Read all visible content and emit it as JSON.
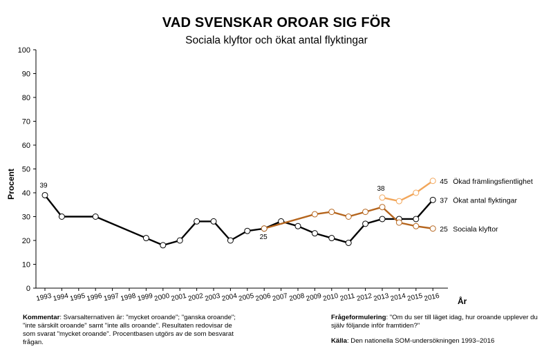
{
  "title": "VAD SVENSKAR OROAR SIG FÖR",
  "subtitle": "Sociala klyftor och ökat antal flyktingar",
  "chart_data": {
    "type": "line",
    "title": "VAD SVENSKAR OROAR SIG FÖR",
    "subtitle": "Sociala klyftor och ökat antal flyktingar",
    "xlabel": "År",
    "ylabel": "Procent",
    "ylim": [
      0,
      100
    ],
    "yticks": [
      "0",
      "10",
      "20",
      "30",
      "40",
      "50",
      "60",
      "70",
      "80",
      "90",
      "100"
    ],
    "xticks": [
      "1993",
      "1994",
      "1995",
      "1996",
      "1997",
      "1998",
      "1999",
      "2000",
      "2001",
      "2002",
      "2003",
      "2004",
      "2005",
      "2006",
      "2007",
      "2008",
      "2009",
      "2010",
      "2011",
      "2012",
      "2013",
      "2014",
      "2015",
      "2016"
    ],
    "grid": false,
    "legend": "right-end labels",
    "series": [
      {
        "name": "Ökat antal flyktingar",
        "color": "#000000",
        "end_label": "37",
        "points": [
          {
            "x": 1993,
            "y": 39
          },
          {
            "x": 1994,
            "y": 30
          },
          {
            "x": 1996,
            "y": 30
          },
          {
            "x": 1999,
            "y": 21
          },
          {
            "x": 2000,
            "y": 18
          },
          {
            "x": 2001,
            "y": 20
          },
          {
            "x": 2002,
            "y": 28
          },
          {
            "x": 2003,
            "y": 28
          },
          {
            "x": 2004,
            "y": 20
          },
          {
            "x": 2005,
            "y": 24
          },
          {
            "x": 2006,
            "y": 25
          },
          {
            "x": 2007,
            "y": 28
          },
          {
            "x": 2008,
            "y": 26
          },
          {
            "x": 2009,
            "y": 23
          },
          {
            "x": 2010,
            "y": 21
          },
          {
            "x": 2011,
            "y": 19
          },
          {
            "x": 2012,
            "y": 27
          },
          {
            "x": 2013,
            "y": 29
          },
          {
            "x": 2014,
            "y": 29
          },
          {
            "x": 2015,
            "y": 29
          },
          {
            "x": 2016,
            "y": 37
          }
        ]
      },
      {
        "name": "Sociala klyftor",
        "color": "#b5651d",
        "end_label": "25",
        "points": [
          {
            "x": 2006,
            "y": 25
          },
          {
            "x": 2009,
            "y": 31
          },
          {
            "x": 2010,
            "y": 32
          },
          {
            "x": 2011,
            "y": 30
          },
          {
            "x": 2012,
            "y": 32
          },
          {
            "x": 2013,
            "y": 34
          },
          {
            "x": 2014,
            "y": 27.5
          },
          {
            "x": 2015,
            "y": 26
          },
          {
            "x": 2016,
            "y": 25
          }
        ]
      },
      {
        "name": "Ökad främlingsfientlighet",
        "color": "#f2a65a",
        "end_label": "45",
        "points": [
          {
            "x": 2013,
            "y": 38
          },
          {
            "x": 2014,
            "y": 36.5
          },
          {
            "x": 2015,
            "y": 40
          },
          {
            "x": 2016,
            "y": 45
          }
        ]
      }
    ],
    "annotations": [
      {
        "text": "39",
        "x": 1993,
        "y": 39
      },
      {
        "text": "25",
        "x": 2006,
        "y": 25
      },
      {
        "text": "38",
        "x": 2013,
        "y": 38
      }
    ]
  },
  "notes": {
    "kommentar_label": "Kommentar",
    "kommentar_text": ": Svarsalternativen är: \"mycket oroande\"; \"ganska oroande\"; \"inte särskilt oroande\" samt \"inte alls oroande\". Resultaten redovisar de som svarat \"mycket oroande\". Procentbasen utgörs av de som besvarat frågan.",
    "fragor_label": "Frågeformulering",
    "fragor_text": ": \"Om du ser till läget idag, hur oroande upplever du själv följande inför framtiden?\"",
    "kalla_label": "Källa",
    "kalla_text": ": Den nationella SOM-undersökningen 1993–2016"
  }
}
